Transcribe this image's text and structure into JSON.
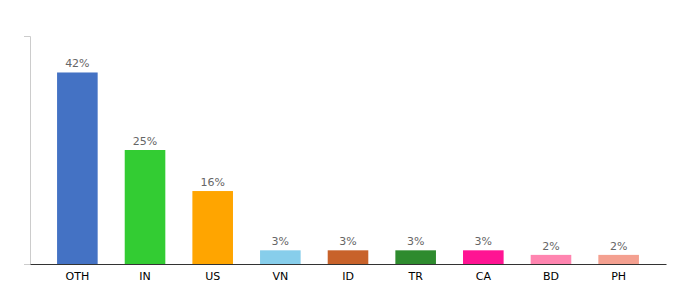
{
  "chart_data": {
    "type": "bar",
    "categories": [
      "OTH",
      "IN",
      "US",
      "VN",
      "ID",
      "TR",
      "CA",
      "BD",
      "PH"
    ],
    "values": [
      42,
      25,
      16,
      3,
      3,
      3,
      3,
      2,
      2
    ],
    "value_labels": [
      "42%",
      "25%",
      "16%",
      "3%",
      "3%",
      "3%",
      "3%",
      "2%",
      "2%"
    ],
    "colors": [
      "#4472c4",
      "#33cc33",
      "#ffa500",
      "#87ceeb",
      "#c8622a",
      "#2e8b2e",
      "#ff1493",
      "#ff85b0",
      "#f4a090"
    ],
    "ylim": [
      0,
      50
    ],
    "grid": false,
    "tick_labels": "x"
  }
}
